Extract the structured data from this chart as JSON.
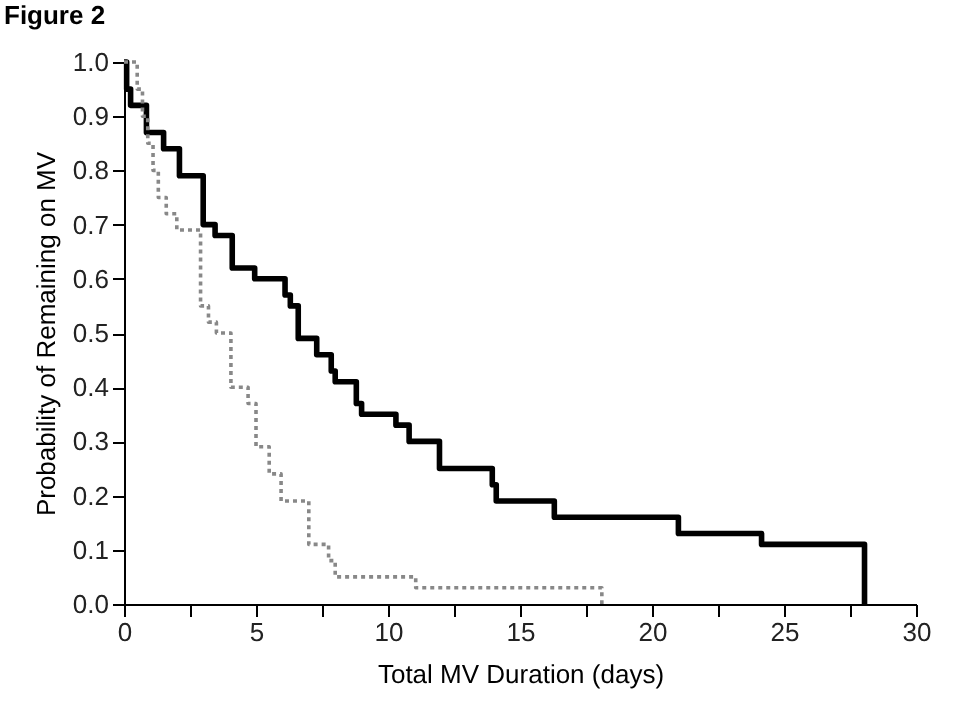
{
  "chart_data": {
    "type": "step",
    "title": "Figure 2",
    "xlabel": "Total MV Duration (days)",
    "ylabel": "Probability of Remaining on MV",
    "xlim": [
      0,
      30
    ],
    "ylim": [
      0,
      1
    ],
    "xticks": [
      0,
      {
        "value": 2.5,
        "label": null
      },
      5,
      {
        "value": 7.5,
        "label": null
      },
      10,
      {
        "value": 12.5,
        "label": null
      },
      15,
      {
        "value": 17.5,
        "label": null
      },
      20,
      {
        "value": 22.5,
        "label": null
      },
      25,
      {
        "value": 27.5,
        "label": null
      },
      30
    ],
    "yticks": [
      {
        "value": 0,
        "label": "0.0"
      },
      0.1,
      0.2,
      0.3,
      0.4,
      0.5,
      0.6,
      0.7,
      0.8,
      0.9,
      {
        "value": 1,
        "label": "1.0"
      }
    ],
    "grid": false,
    "series": [
      {
        "color": "#000000",
        "line_style": "solid",
        "x": [
          0,
          0.1,
          0.25,
          0.85,
          1.5,
          2.1,
          3.0,
          3.45,
          4.1,
          4.95,
          6.1,
          6.3,
          6.6,
          7.3,
          7.85,
          8.0,
          8.8,
          9.0,
          10.3,
          10.8,
          11.95,
          13.95,
          14.1,
          16.3,
          21.0,
          24.15,
          28.05
        ],
        "values": [
          1.0,
          0.95,
          0.92,
          0.87,
          0.84,
          0.79,
          0.7,
          0.68,
          0.62,
          0.6,
          0.57,
          0.55,
          0.49,
          0.46,
          0.43,
          0.41,
          0.37,
          0.35,
          0.33,
          0.3,
          0.25,
          0.22,
          0.19,
          0.16,
          0.13,
          0.11,
          0
        ]
      },
      {
        "color": "#888888",
        "line_style": "dotted",
        "x": [
          0,
          0.5,
          0.7,
          0.9,
          1.1,
          1.3,
          1.6,
          2.0,
          2.9,
          3.2,
          3.5,
          4.05,
          4.7,
          5.0,
          5.5,
          5.95,
          7.0,
          7.75,
          8.0,
          11.05,
          18.1
        ],
        "values": [
          1.0,
          0.95,
          0.9,
          0.85,
          0.8,
          0.75,
          0.72,
          0.69,
          0.55,
          0.52,
          0.5,
          0.4,
          0.37,
          0.29,
          0.24,
          0.19,
          0.11,
          0.08,
          0.05,
          0.03,
          0
        ]
      }
    ]
  }
}
